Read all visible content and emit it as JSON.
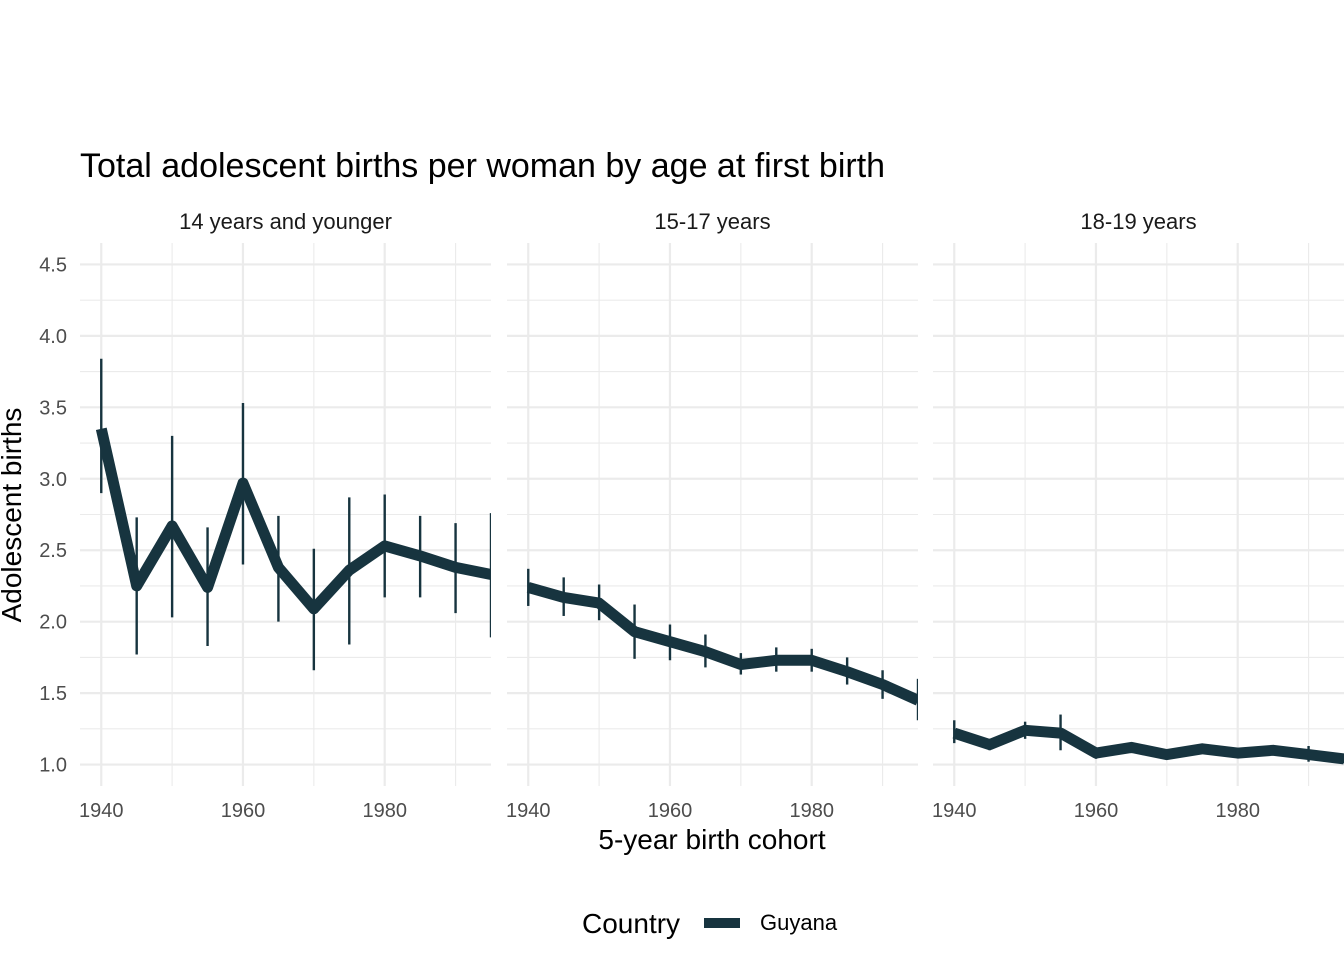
{
  "chart_data": {
    "type": "line",
    "title": "Total adolescent births per woman by age at first birth",
    "xlabel": "5-year birth cohort",
    "ylabel": "Adolescent births",
    "xlim": [
      1937,
      1995
    ],
    "ylim": [
      0.85,
      4.65
    ],
    "x_ticks": [
      1940,
      1960,
      1980
    ],
    "x_tick_labels": [
      "1940",
      "1960",
      "1980"
    ],
    "y_ticks": [
      1.0,
      1.5,
      2.0,
      2.5,
      3.0,
      3.5,
      4.0,
      4.5
    ],
    "y_tick_labels": [
      "1.0",
      "1.5",
      "2.0",
      "2.5",
      "3.0",
      "3.5",
      "4.0",
      "4.5"
    ],
    "grid": true,
    "legend": {
      "title": "Country",
      "position": "bottom",
      "items": [
        {
          "label": "Guyana",
          "color": "#17343f"
        }
      ]
    },
    "series_color": "#17343f",
    "facets": [
      {
        "label": "14 years and younger",
        "x": [
          1940,
          1945,
          1950,
          1955,
          1960,
          1965,
          1970,
          1975,
          1980,
          1985,
          1990,
          1995
        ],
        "y": [
          3.35,
          2.25,
          2.67,
          2.24,
          2.97,
          2.38,
          2.09,
          2.36,
          2.53,
          2.46,
          2.38,
          2.33
        ],
        "lower": [
          2.9,
          1.77,
          2.03,
          1.83,
          2.4,
          2.0,
          1.66,
          1.84,
          2.17,
          2.17,
          2.06,
          1.89
        ],
        "upper": [
          3.84,
          2.73,
          3.3,
          2.66,
          3.53,
          2.74,
          2.51,
          2.87,
          2.89,
          2.74,
          2.69,
          2.76
        ]
      },
      {
        "label": "15-17 years",
        "x": [
          1940,
          1945,
          1950,
          1955,
          1960,
          1965,
          1970,
          1975,
          1980,
          1985,
          1990,
          1995
        ],
        "y": [
          2.24,
          2.17,
          2.13,
          1.93,
          1.86,
          1.79,
          1.7,
          1.73,
          1.73,
          1.65,
          1.56,
          1.45
        ],
        "lower": [
          2.11,
          2.04,
          2.01,
          1.74,
          1.73,
          1.68,
          1.63,
          1.65,
          1.65,
          1.56,
          1.46,
          1.31
        ],
        "upper": [
          2.37,
          2.31,
          2.26,
          2.12,
          1.98,
          1.91,
          1.78,
          1.82,
          1.81,
          1.75,
          1.66,
          1.6
        ]
      },
      {
        "label": "18-19 years",
        "x": [
          1940,
          1945,
          1950,
          1955,
          1960,
          1965,
          1970,
          1975,
          1980,
          1985,
          1990,
          1995
        ],
        "y": [
          1.22,
          1.14,
          1.24,
          1.22,
          1.08,
          1.12,
          1.07,
          1.11,
          1.08,
          1.1,
          1.07,
          1.04
        ],
        "lower": [
          1.15,
          1.1,
          1.18,
          1.1,
          1.04,
          1.08,
          1.04,
          1.08,
          1.05,
          1.07,
          1.02,
          1.01
        ],
        "upper": [
          1.31,
          1.18,
          1.3,
          1.35,
          1.12,
          1.15,
          1.1,
          1.14,
          1.11,
          1.13,
          1.13,
          1.07
        ]
      }
    ]
  }
}
